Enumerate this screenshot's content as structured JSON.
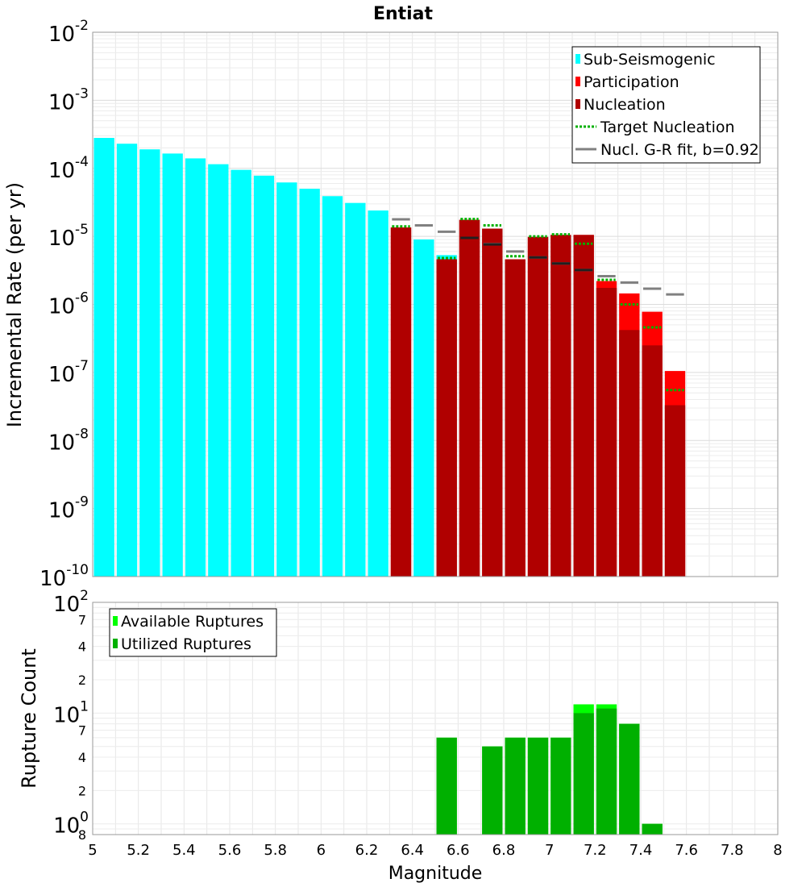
{
  "chart_data": [
    {
      "type": "bar",
      "title": "Entiat",
      "xlabel": "",
      "ylabel": "Incremental Rate (per yr)",
      "xlim": [
        5,
        8
      ],
      "ylim": [
        1e-10,
        0.01
      ],
      "y_scale": "log",
      "grid": true,
      "legend_position": "top-right",
      "y_tick_labels": [
        {
          "base": "10",
          "exp": "-10"
        },
        {
          "base": "10",
          "exp": "-9"
        },
        {
          "base": "10",
          "exp": "-8"
        },
        {
          "base": "10",
          "exp": "-7"
        },
        {
          "base": "10",
          "exp": "-6"
        },
        {
          "base": "10",
          "exp": "-5"
        },
        {
          "base": "10",
          "exp": "-4"
        },
        {
          "base": "10",
          "exp": "-3"
        },
        {
          "base": "10",
          "exp": "-2"
        }
      ],
      "legend": [
        {
          "label": "Sub-Seismogenic",
          "style": "bar",
          "color": "#00ffff"
        },
        {
          "label": "Participation",
          "style": "bar",
          "color": "#ff0000"
        },
        {
          "label": "Nucleation",
          "style": "bar",
          "color": "#b00000"
        },
        {
          "label": "Target Nucleation",
          "style": "dotted",
          "color": "#00b000"
        },
        {
          "label": "Nucl. G-R fit, b=0.92",
          "style": "line",
          "color": "#808080"
        }
      ],
      "series": [
        {
          "name": "Sub-Seismogenic",
          "color": "#00ffff",
          "x": [
            5.05,
            5.15,
            5.25,
            5.35,
            5.45,
            5.55,
            5.65,
            5.75,
            5.85,
            5.95,
            6.05,
            6.15,
            6.25,
            6.45,
            6.55
          ],
          "y": [
            0.00028,
            0.00023,
            0.00019,
            0.000165,
            0.00014,
            0.000115,
            9.5e-05,
            7.8e-05,
            6.2e-05,
            5e-05,
            3.9e-05,
            3.1e-05,
            2.4e-05,
            9e-06,
            5.3e-06
          ]
        },
        {
          "name": "Participation",
          "color": "#ff0000",
          "x": [
            6.35,
            6.55,
            6.65,
            6.75,
            6.85,
            6.95,
            7.05,
            7.15,
            7.25,
            7.35,
            7.45,
            7.55
          ],
          "y": [
            1.35e-05,
            4.6e-06,
            1.75e-05,
            1.3e-05,
            4.6e-06,
            9.8e-06,
            1.05e-05,
            1.05e-05,
            2.2e-06,
            1.45e-06,
            7.8e-07,
            1.05e-07
          ]
        },
        {
          "name": "Nucleation",
          "color": "#b00000",
          "x": [
            6.35,
            6.55,
            6.65,
            6.75,
            6.85,
            6.95,
            7.05,
            7.15,
            7.25,
            7.35,
            7.45,
            7.55
          ],
          "y": [
            1.35e-05,
            4.6e-06,
            1.75e-05,
            1.3e-05,
            4.6e-06,
            9.8e-06,
            1.05e-05,
            1.05e-05,
            1.75e-06,
            4.2e-07,
            2.5e-07,
            3.3e-08
          ]
        },
        {
          "name": "Target Nucleation",
          "color": "#00b000",
          "x": [
            6.35,
            6.55,
            6.65,
            6.75,
            6.85,
            6.95,
            7.05,
            7.15,
            7.25,
            7.35,
            7.45,
            7.55
          ],
          "y": [
            1.4e-05,
            4.8e-06,
            1.8e-05,
            1.45e-05,
            5.1e-06,
            1e-05,
            1.07e-05,
            7.8e-06,
            2.3e-06,
            1e-06,
            4.6e-07,
            5.5e-08
          ]
        },
        {
          "name": "Nucl. G-R fit, b=0.92",
          "color": "#808080",
          "x": [
            6.35,
            6.45,
            6.55,
            6.65,
            6.75,
            6.85,
            6.95,
            7.05,
            7.15,
            7.25,
            7.35,
            7.45,
            7.55
          ],
          "y": [
            1.78e-05,
            1.45e-05,
            1.17e-05,
            9.5e-06,
            7.7e-06,
            6e-06,
            4.9e-06,
            4e-06,
            3.2e-06,
            2.6e-06,
            2.1e-06,
            1.7e-06,
            1.4e-06
          ]
        },
        {
          "name": "",
          "color": "#202020",
          "x": [
            6.65,
            6.75,
            6.95,
            7.05,
            7.15
          ],
          "y": [
            9.5e-06,
            7.6e-06,
            4.9e-06,
            4e-06,
            3.2e-06
          ]
        }
      ]
    },
    {
      "type": "bar",
      "title": "",
      "xlabel": "Magnitude",
      "ylabel": "Rupture Count",
      "xlim": [
        5,
        8
      ],
      "ylim": [
        0.8,
        100
      ],
      "y_scale": "log",
      "grid": true,
      "legend_position": "top-left",
      "x_ticks": [
        "5",
        "5.2",
        "5.4",
        "5.6",
        "5.8",
        "6",
        "6.2",
        "6.4",
        "6.6",
        "6.8",
        "7",
        "7.2",
        "7.4",
        "7.6",
        "7.8",
        "8"
      ],
      "y_tick_labels": [
        {
          "value": 0.8,
          "base": "8",
          "exp": ""
        },
        {
          "value": 1,
          "base": "10",
          "exp": "0"
        },
        {
          "value": 2,
          "base": "2",
          "exp": ""
        },
        {
          "value": 4,
          "base": "4",
          "exp": ""
        },
        {
          "value": 7,
          "base": "7",
          "exp": ""
        },
        {
          "value": 10,
          "base": "10",
          "exp": "1"
        },
        {
          "value": 20,
          "base": "2",
          "exp": ""
        },
        {
          "value": 40,
          "base": "4",
          "exp": ""
        },
        {
          "value": 70,
          "base": "7",
          "exp": ""
        },
        {
          "value": 100,
          "base": "10",
          "exp": "2"
        }
      ],
      "legend": [
        {
          "label": "Available Ruptures",
          "color": "#00ff00"
        },
        {
          "label": "Utilized Ruptures",
          "color": "#00b000"
        }
      ],
      "series": [
        {
          "name": "Available Ruptures",
          "color": "#00ff00",
          "x": [
            6.55,
            6.75,
            6.85,
            6.95,
            7.05,
            7.15,
            7.25,
            7.35,
            7.45
          ],
          "y": [
            6,
            5,
            6,
            6,
            6,
            12,
            12,
            8,
            1
          ]
        },
        {
          "name": "Utilized Ruptures",
          "color": "#00b000",
          "x": [
            6.55,
            6.75,
            6.85,
            6.95,
            7.05,
            7.15,
            7.25,
            7.35,
            7.45
          ],
          "y": [
            6,
            5,
            6,
            6,
            6,
            10,
            11,
            8,
            1
          ]
        }
      ]
    }
  ]
}
